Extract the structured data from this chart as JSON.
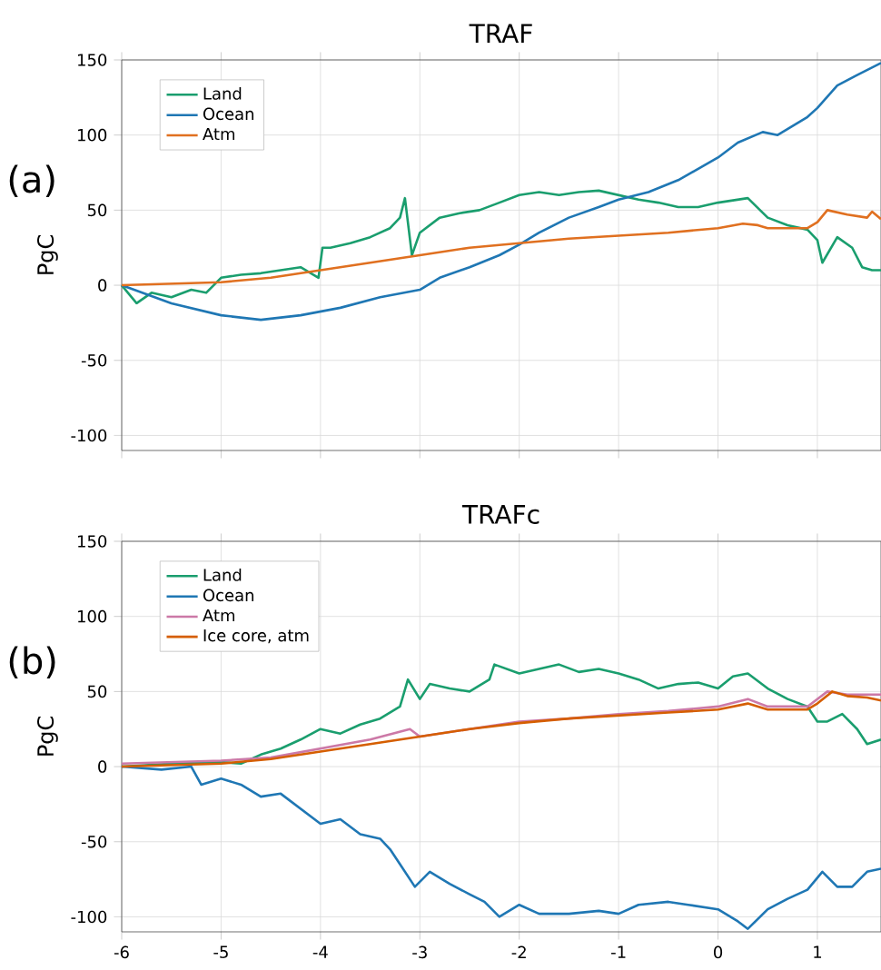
{
  "chart_data": [
    {
      "type": "line",
      "title": "TRAF",
      "ylabel": "PgC",
      "annotations": [
        "(a)"
      ],
      "xlim": [
        -6,
        1.64
      ],
      "ylim": [
        -110,
        150
      ],
      "xticks": [
        -6,
        -5,
        -4,
        -3,
        -2,
        -1,
        0,
        1
      ],
      "yticks": [
        -100,
        -50,
        0,
        50,
        100,
        150
      ],
      "grid": true,
      "legend": "top left",
      "tick_labels": "y",
      "series": [
        {
          "name": "Land",
          "color": "#1a9e6e",
          "x": [
            -6,
            -5.85,
            -5.7,
            -5.5,
            -5.3,
            -5.15,
            -5.0,
            -4.8,
            -4.6,
            -4.4,
            -4.2,
            -4.02,
            -3.98,
            -3.9,
            -3.7,
            -3.5,
            -3.3,
            -3.2,
            -3.15,
            -3.08,
            -3.0,
            -2.8,
            -2.6,
            -2.4,
            -2.2,
            -2.0,
            -1.8,
            -1.6,
            -1.4,
            -1.2,
            -1.0,
            -0.8,
            -0.6,
            -0.4,
            -0.2,
            0,
            0.3,
            0.5,
            0.7,
            0.9,
            1.0,
            1.05,
            1.2,
            1.35,
            1.45,
            1.55,
            1.64
          ],
          "values": [
            0,
            -12,
            -5,
            -8,
            -3,
            -5,
            5,
            7,
            8,
            10,
            12,
            5,
            25,
            25,
            28,
            32,
            38,
            45,
            58,
            20,
            35,
            45,
            48,
            50,
            55,
            60,
            62,
            60,
            62,
            63,
            60,
            57,
            55,
            52,
            52,
            55,
            58,
            45,
            40,
            37,
            30,
            15,
            32,
            25,
            12,
            10,
            10
          ]
        },
        {
          "name": "Ocean",
          "color": "#1f77b4",
          "x": [
            -6,
            -5.5,
            -5.0,
            -4.6,
            -4.2,
            -3.8,
            -3.4,
            -3.0,
            -2.8,
            -2.5,
            -2.2,
            -2.0,
            -1.8,
            -1.5,
            -1.2,
            -1.0,
            -0.7,
            -0.4,
            0,
            0.2,
            0.45,
            0.6,
            0.9,
            1.0,
            1.2,
            1.4,
            1.64
          ],
          "values": [
            0,
            -12,
            -20,
            -23,
            -20,
            -15,
            -8,
            -3,
            5,
            12,
            20,
            27,
            35,
            45,
            52,
            57,
            62,
            70,
            85,
            95,
            102,
            100,
            112,
            118,
            133,
            140,
            148
          ]
        },
        {
          "name": "Atm",
          "color": "#e07020",
          "x": [
            -6,
            -5,
            -4.5,
            -4,
            -3.5,
            -3,
            -2.5,
            -2,
            -1.5,
            -1,
            -0.5,
            0,
            0.25,
            0.4,
            0.5,
            0.9,
            1.0,
            1.1,
            1.3,
            1.5,
            1.55,
            1.64
          ],
          "values": [
            0,
            2,
            5,
            10,
            15,
            20,
            25,
            28,
            31,
            33,
            35,
            38,
            41,
            40,
            38,
            38,
            42,
            50,
            47,
            45,
            49,
            44
          ]
        }
      ]
    },
    {
      "type": "line",
      "title": "TRAFc",
      "ylabel": "PgC",
      "annotations": [
        "(b)"
      ],
      "xlim": [
        -6,
        1.64
      ],
      "ylim": [
        -110,
        150
      ],
      "xticks": [
        -6,
        -5,
        -4,
        -3,
        -2,
        -1,
        0,
        1
      ],
      "yticks": [
        -100,
        -50,
        0,
        50,
        100,
        150
      ],
      "grid": true,
      "legend": "top left",
      "series": [
        {
          "name": "Land",
          "color": "#1a9e6e",
          "x": [
            -6,
            -5.5,
            -5,
            -4.8,
            -4.6,
            -4.4,
            -4.2,
            -4.0,
            -3.8,
            -3.6,
            -3.4,
            -3.2,
            -3.12,
            -3.0,
            -2.9,
            -2.7,
            -2.5,
            -2.3,
            -2.25,
            -2.0,
            -1.8,
            -1.6,
            -1.4,
            -1.2,
            -1.0,
            -0.8,
            -0.6,
            -0.4,
            -0.2,
            0,
            0.15,
            0.3,
            0.5,
            0.7,
            0.9,
            1.0,
            1.1,
            1.25,
            1.4,
            1.5,
            1.64
          ],
          "values": [
            0,
            2,
            3,
            2,
            8,
            12,
            18,
            25,
            22,
            28,
            32,
            40,
            58,
            45,
            55,
            52,
            50,
            58,
            68,
            62,
            65,
            68,
            63,
            65,
            62,
            58,
            52,
            55,
            56,
            52,
            60,
            62,
            52,
            45,
            40,
            30,
            30,
            35,
            25,
            15,
            18
          ]
        },
        {
          "name": "Ocean",
          "color": "#1f77b4",
          "x": [
            -6,
            -5.6,
            -5.3,
            -5.2,
            -5.0,
            -4.8,
            -4.6,
            -4.4,
            -4.2,
            -4.0,
            -3.8,
            -3.6,
            -3.4,
            -3.3,
            -3.2,
            -3.05,
            -2.9,
            -2.7,
            -2.5,
            -2.35,
            -2.2,
            -2.0,
            -1.8,
            -1.5,
            -1.2,
            -1.0,
            -0.8,
            -0.5,
            -0.3,
            0,
            0.2,
            0.3,
            0.5,
            0.7,
            0.9,
            1.05,
            1.2,
            1.35,
            1.5,
            1.64
          ],
          "values": [
            0,
            -2,
            0,
            -12,
            -8,
            -12,
            -20,
            -18,
            -28,
            -38,
            -35,
            -45,
            -48,
            -55,
            -65,
            -80,
            -70,
            -78,
            -85,
            -90,
            -100,
            -92,
            -98,
            -98,
            -96,
            -98,
            -92,
            -90,
            -92,
            -95,
            -103,
            -108,
            -95,
            -88,
            -82,
            -70,
            -80,
            -80,
            -70,
            -68
          ]
        },
        {
          "name": "Atm",
          "color": "#cc79a7",
          "x": [
            -6,
            -5,
            -4.5,
            -4,
            -3.5,
            -3.1,
            -3,
            -2.5,
            -2,
            -1.5,
            -1,
            -0.5,
            0,
            0.3,
            0.5,
            0.9,
            1.1,
            1.3,
            1.64
          ],
          "values": [
            2,
            4,
            6,
            12,
            18,
            25,
            20,
            25,
            30,
            32,
            35,
            37,
            40,
            45,
            40,
            40,
            50,
            48,
            48
          ]
        },
        {
          "name": "Ice core, atm",
          "color": "#d55e00",
          "x": [
            -6,
            -5,
            -4.5,
            -4,
            -3.5,
            -3,
            -2.5,
            -2,
            -1.5,
            -1,
            -0.5,
            0,
            0.3,
            0.5,
            0.9,
            1.0,
            1.15,
            1.3,
            1.5,
            1.64
          ],
          "values": [
            0,
            2,
            5,
            10,
            15,
            20,
            25,
            29,
            32,
            34,
            36,
            38,
            42,
            38,
            38,
            42,
            50,
            47,
            46,
            44
          ]
        }
      ]
    }
  ]
}
